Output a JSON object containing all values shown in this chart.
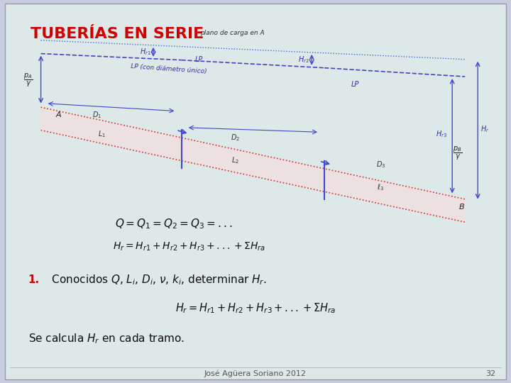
{
  "title": "TUBERÍAS EN SERIE",
  "title_color": "#cc0000",
  "bg_color": "#c8cce0",
  "panel_color": "#dde8e8",
  "footer_text": "José Agüera Soriano 2012",
  "footer_page": "32",
  "arrow_color": "#4444cc",
  "dim_color": "#4444cc"
}
